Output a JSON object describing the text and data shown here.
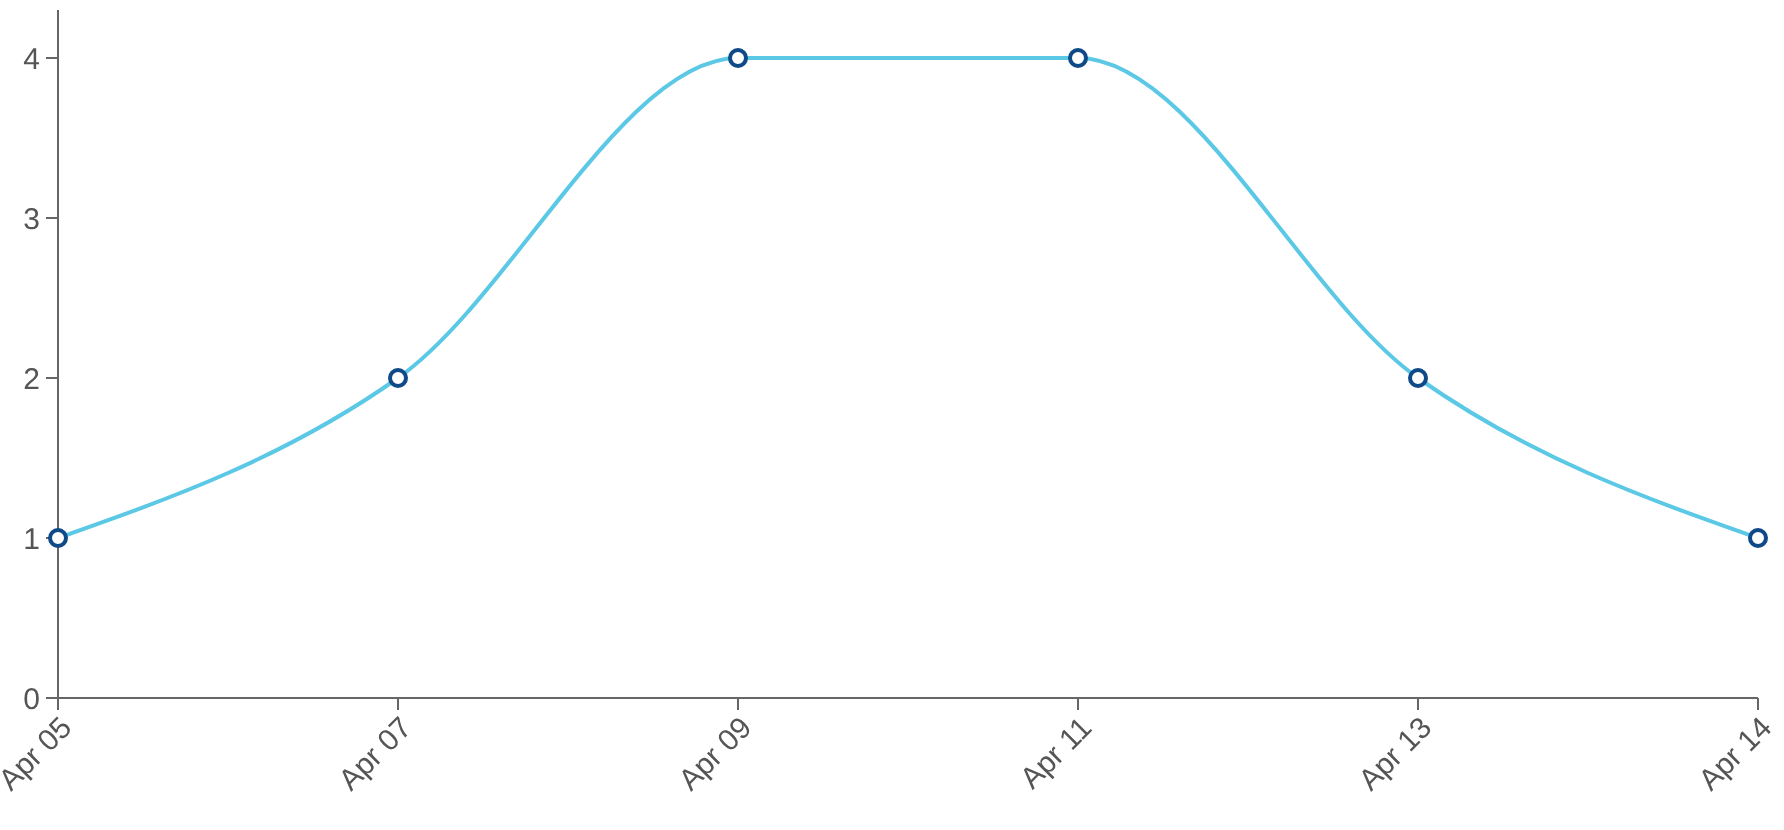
{
  "chart_data": {
    "type": "line",
    "categories": [
      "Apr 05",
      "Apr 07",
      "Apr 09",
      "Apr 11",
      "Apr 13",
      "Apr 14"
    ],
    "series": [
      {
        "color": "#5bc8e6",
        "values": [
          1,
          2,
          4,
          4,
          2,
          1
        ]
      }
    ],
    "ylim": [
      0,
      4.3
    ],
    "yticks": [
      0,
      1,
      2,
      3,
      4
    ],
    "marker": "circle"
  }
}
